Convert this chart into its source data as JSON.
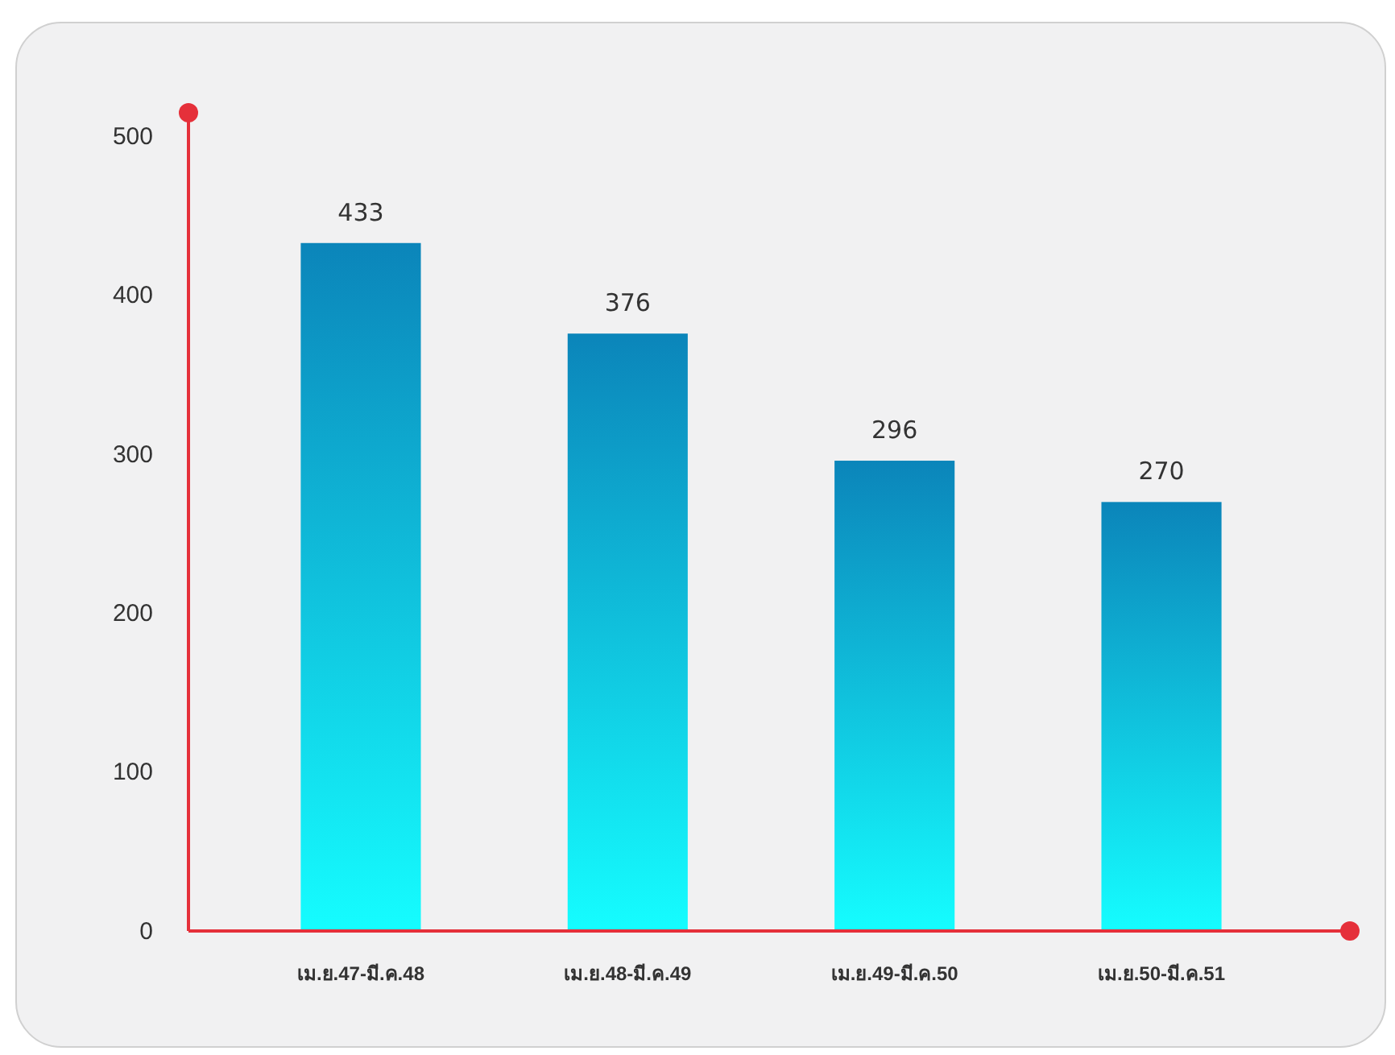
{
  "chart_data": {
    "type": "bar",
    "categories": [
      "เม.ย.47-มี.ค.48",
      "เม.ย.48-มี.ค.49",
      "เม.ย.49-มี.ค.50",
      "เม.ย.50-มี.ค.51"
    ],
    "values": [
      433,
      376,
      296,
      270
    ],
    "color": "#0ea5e6",
    "data_labels": true,
    "ylim": [
      0,
      515
    ],
    "yticks": [
      0,
      100,
      200,
      300,
      400,
      500
    ],
    "grid": false
  }
}
